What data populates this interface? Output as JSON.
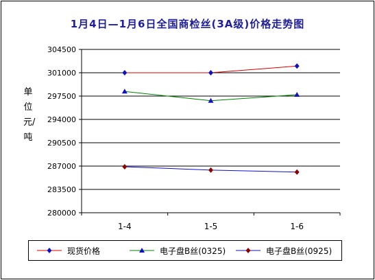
{
  "chart_data": {
    "type": "line",
    "title": "1月4日—1月6日全国商检丝(3A级)价格走势图",
    "ylabel": "单位 元/吨",
    "categories": [
      "1-4",
      "1-5",
      "1-6"
    ],
    "ylim": [
      280000,
      304500
    ],
    "yticks": [
      280000,
      283500,
      287000,
      290500,
      294000,
      297500,
      301000,
      304500
    ],
    "grid": true,
    "legend_position": "bottom",
    "series": [
      {
        "name": "现货价格",
        "values": [
          301000,
          301000,
          302000
        ],
        "color": "#d40000",
        "marker_color": "#1010c0",
        "marker": "diamond"
      },
      {
        "name": "电子盘B丝(0325)",
        "values": [
          298200,
          296800,
          297700
        ],
        "color": "#008000",
        "marker_color": "#1010c0",
        "marker": "triangle"
      },
      {
        "name": "电子盘B丝(0925)",
        "values": [
          286900,
          286400,
          286100
        ],
        "color": "#1010c0",
        "marker_color": "#8b0000",
        "marker": "diamond"
      }
    ]
  }
}
